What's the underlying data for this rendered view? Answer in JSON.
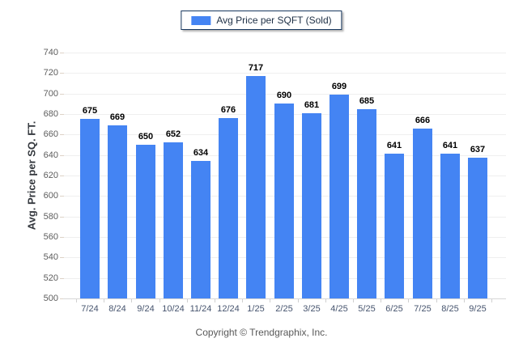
{
  "legend": {
    "label": "Avg Price per SQFT (Sold)"
  },
  "footer": {
    "copyright": "Copyright © Trendgraphix, Inc."
  },
  "colors": {
    "bar": "#4484f3",
    "legend_border": "#17375e",
    "gridline": "#efefef",
    "axis_line": "#d6d6d6",
    "y_tick_label": "#5d5d5d",
    "x_tick_label": "#46546e",
    "value_label": "#000000"
  },
  "chart_data": {
    "type": "bar",
    "title": "",
    "series_name": "Avg Price per SQFT (Sold)",
    "categories": [
      "7/24",
      "8/24",
      "9/24",
      "10/24",
      "11/24",
      "12/24",
      "1/25",
      "2/25",
      "3/25",
      "4/25",
      "5/25",
      "6/25",
      "7/25",
      "8/25",
      "9/25"
    ],
    "values": [
      675,
      669,
      650,
      652,
      634,
      676,
      717,
      690,
      681,
      699,
      685,
      641,
      666,
      641,
      637
    ],
    "xlabel": "",
    "ylabel": "Avg. Price per SQ. FT.",
    "ylim": [
      500,
      740
    ],
    "ytick_step": 20,
    "grid": true,
    "legend_position": "top"
  }
}
